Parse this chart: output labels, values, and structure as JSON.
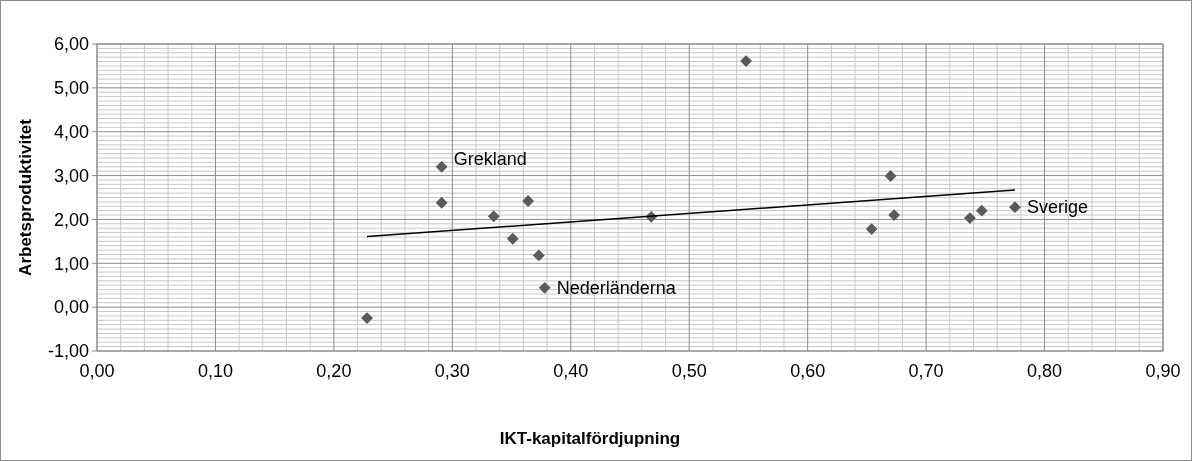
{
  "chart_data": {
    "type": "scatter",
    "xlabel": "IKT-kapitalfördjupning",
    "ylabel": "Arbetsproduktivitet",
    "marker": "diamond",
    "grid": true,
    "xlim": [
      0,
      0.9
    ],
    "ylim": [
      -1,
      6
    ],
    "xticks": [
      {
        "value": 0,
        "label": "0,00"
      },
      {
        "value": 0.1,
        "label": "0,10"
      },
      {
        "value": 0.2,
        "label": "0,20"
      },
      {
        "value": 0.3,
        "label": "0,30"
      },
      {
        "value": 0.4,
        "label": "0,40"
      },
      {
        "value": 0.5,
        "label": "0,50"
      },
      {
        "value": 0.6,
        "label": "0,60"
      },
      {
        "value": 0.7,
        "label": "0,70"
      },
      {
        "value": 0.8,
        "label": "0,80"
      },
      {
        "value": 0.9,
        "label": "0,90"
      }
    ],
    "yticks": [
      {
        "value": -1,
        "label": "-1,00"
      },
      {
        "value": 0,
        "label": "0,00"
      },
      {
        "value": 1,
        "label": "1,00"
      },
      {
        "value": 2,
        "label": "2,00"
      },
      {
        "value": 3,
        "label": "3,00"
      },
      {
        "value": 4,
        "label": "4,00"
      },
      {
        "value": 5,
        "label": "5,00"
      },
      {
        "value": 6,
        "label": "6,00"
      }
    ],
    "series": [
      {
        "color": "#5a5a5a",
        "x": [
          0.228,
          0.291,
          0.291,
          0.335,
          0.364,
          0.351,
          0.373,
          0.378,
          0.468,
          0.548,
          0.654,
          0.67,
          0.673,
          0.737,
          0.747,
          0.775
        ],
        "values": [
          -0.25,
          3.2,
          2.38,
          2.07,
          2.42,
          1.56,
          1.18,
          0.44,
          2.06,
          5.61,
          1.78,
          2.99,
          2.1,
          2.03,
          2.2,
          2.28
        ]
      },
      {
        "type": "line",
        "color": "#000000",
        "marker": "none",
        "x": [
          0.228,
          0.775
        ],
        "values": [
          1.61,
          2.67
        ]
      }
    ],
    "annotations": [
      {
        "text": "Grekland",
        "x": 0.291,
        "y": 3.2
      },
      {
        "text": "Nederländerna",
        "x": 0.378,
        "y": 0.44
      },
      {
        "text": "Sverige",
        "x": 0.775,
        "y": 2.28
      }
    ]
  }
}
